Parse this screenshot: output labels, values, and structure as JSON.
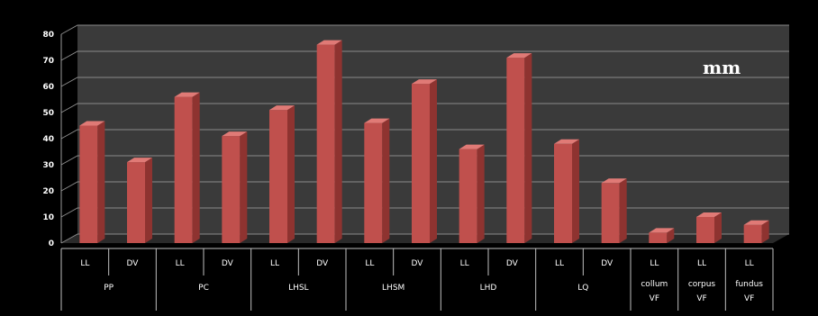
{
  "chart_data": {
    "type": "bar",
    "unit_label": "mm",
    "y_ticks": [
      "0",
      "10",
      "20",
      "30",
      "40",
      "50",
      "60",
      "70",
      "80"
    ],
    "ylim": [
      0,
      80
    ],
    "grid": true,
    "legend": "none",
    "bar_color": "#c0504d",
    "background_color": "#000000",
    "plot_wall_color": "#3a3a3a",
    "groups": [
      {
        "name": "PP",
        "categories": [
          {
            "label": "LL",
            "value": 45
          },
          {
            "label": "DV",
            "value": 31
          }
        ]
      },
      {
        "name": "PC",
        "categories": [
          {
            "label": "LL",
            "value": 56
          },
          {
            "label": "DV",
            "value": 41
          }
        ]
      },
      {
        "name": "LHSL",
        "categories": [
          {
            "label": "LL",
            "value": 51
          },
          {
            "label": "DV",
            "value": 76
          }
        ]
      },
      {
        "name": "LHSM",
        "categories": [
          {
            "label": "LL",
            "value": 46
          },
          {
            "label": "DV",
            "value": 61
          }
        ]
      },
      {
        "name": "LHD",
        "categories": [
          {
            "label": "LL",
            "value": 36
          },
          {
            "label": "DV",
            "value": 71
          }
        ]
      },
      {
        "name": "LQ",
        "categories": [
          {
            "label": "LL",
            "value": 38
          },
          {
            "label": "DV",
            "value": 23
          }
        ]
      },
      {
        "name_lines": [
          "collum",
          "VF"
        ],
        "categories": [
          {
            "label": "LL",
            "value": 4
          }
        ]
      },
      {
        "name_lines": [
          "corpus",
          "VF"
        ],
        "categories": [
          {
            "label": "LL",
            "value": 10
          }
        ]
      },
      {
        "name_lines": [
          "fundus",
          "VF"
        ],
        "categories": [
          {
            "label": "LL",
            "value": 7
          }
        ]
      }
    ]
  }
}
